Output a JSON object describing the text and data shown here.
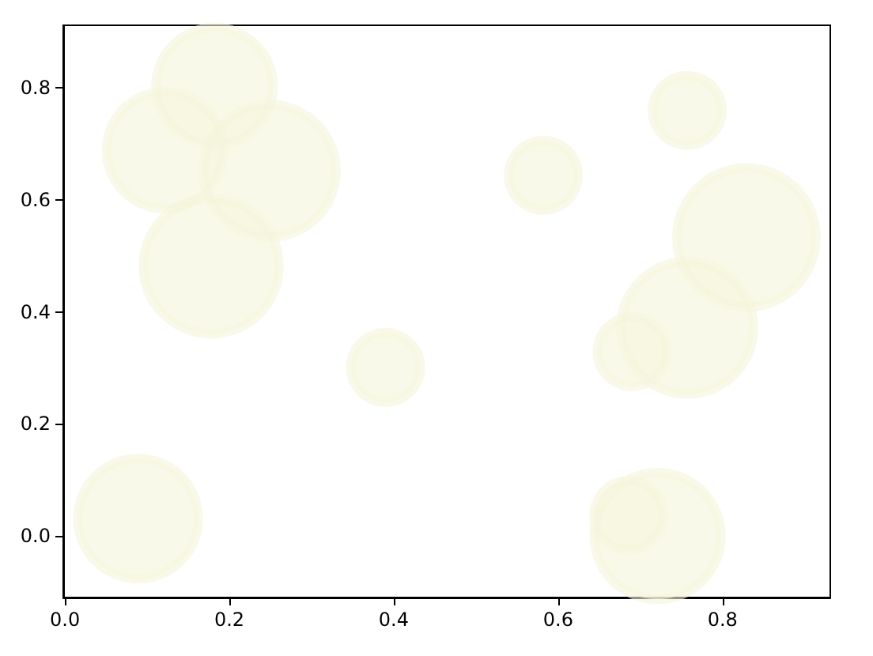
{
  "chart_data": {
    "type": "bubble",
    "xlim": [
      -0.002,
      0.931
    ],
    "ylim": [
      -0.11,
      0.912
    ],
    "xticks": [
      {
        "value": 0,
        "label": "0.0"
      },
      {
        "value": 0.2,
        "label": "0.2"
      },
      {
        "value": 0.4,
        "label": "0.4"
      },
      {
        "value": 0.6,
        "label": "0.6"
      },
      {
        "value": 0.8,
        "label": "0.8"
      }
    ],
    "yticks": [
      {
        "value": 0,
        "label": "0.0"
      },
      {
        "value": 0.2,
        "label": "0.2"
      },
      {
        "value": 0.4,
        "label": "0.4"
      },
      {
        "value": 0.6,
        "label": "0.6"
      },
      {
        "value": 0.8,
        "label": "0.8"
      }
    ],
    "grid": false,
    "series": [
      {
        "color": "#f5f5dc",
        "x": [
          0.182,
          0.122,
          0.249,
          0.178,
          0.39,
          0.582,
          0.757,
          0.829,
          0.757,
          0.69,
          0.089,
          0.686,
          0.721
        ],
        "values": [
          0.803,
          0.689,
          0.652,
          0.482,
          0.301,
          0.644,
          0.76,
          0.533,
          0.372,
          0.329,
          0.031,
          0.037,
          0.0
        ],
        "sizes": [
          0.71,
          0.71,
          0.91,
          0.95,
          0.25,
          0.25,
          0.25,
          1,
          0.91,
          0.25,
          0.75,
          0.25,
          0.83
        ]
      }
    ]
  }
}
